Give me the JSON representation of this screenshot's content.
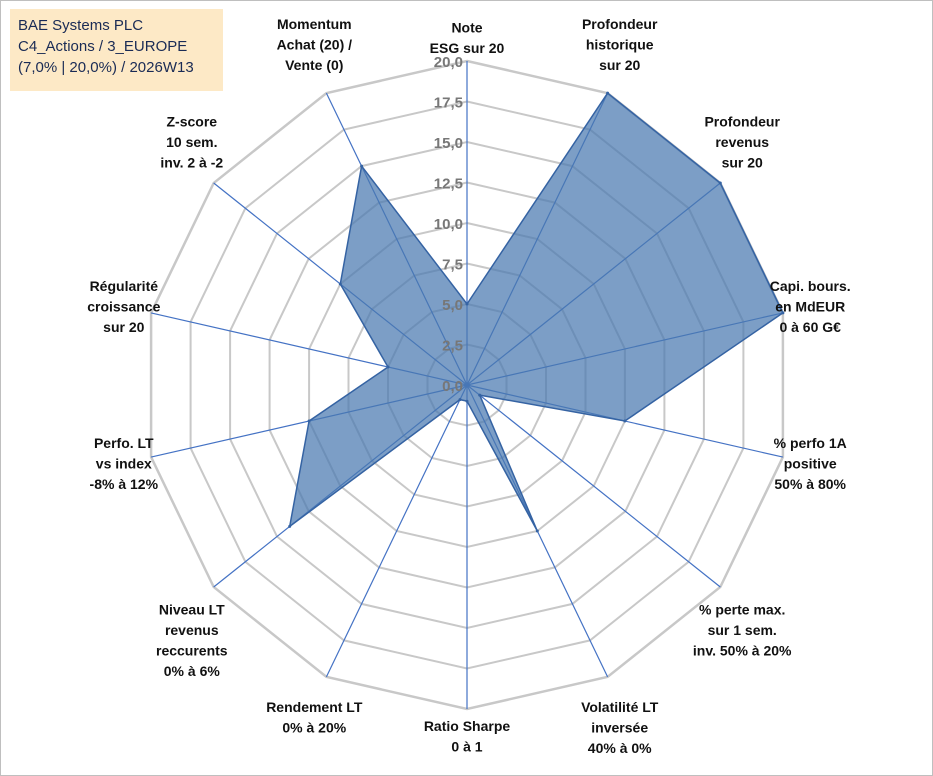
{
  "info": {
    "line1": "BAE Systems PLC",
    "line2": "C4_Actions / 3_EUROPE",
    "line3": "(7,0% | 20,0%) / 2026W13"
  },
  "colors": {
    "fill": "#4a78b0",
    "stroke": "#3563a3",
    "grid": "#c8c8c8",
    "spoke": "#4472c4"
  },
  "chart_data": {
    "type": "radar",
    "title": "BAE Systems PLC",
    "rmin": 0,
    "rmax": 20,
    "ticks": [
      "0,0",
      "2,5",
      "5,0",
      "7,5",
      "10,0",
      "12,5",
      "15,0",
      "17,5",
      "20,0"
    ],
    "axes": [
      {
        "lines": [
          "Note",
          "ESG sur 20"
        ],
        "value": 5
      },
      {
        "lines": [
          "Profondeur",
          "historique",
          "sur 20"
        ],
        "value": 20
      },
      {
        "lines": [
          "Profondeur",
          "revenus",
          "sur 20"
        ],
        "value": 20
      },
      {
        "lines": [
          "Capi. bours.",
          "en MdEUR",
          "0 à 60 G€"
        ],
        "value": 20
      },
      {
        "lines": [
          "% perfo 1A",
          "positive",
          "50% à 80%"
        ],
        "value": 10
      },
      {
        "lines": [
          "% perte max.",
          "sur 1 sem.",
          "inv. 50% à 20%"
        ],
        "value": 1
      },
      {
        "lines": [
          "Volatilité LT",
          "inversée",
          "40% à 0%"
        ],
        "value": 10
      },
      {
        "lines": [
          "Ratio Sharpe",
          "0 à 1"
        ],
        "value": 1
      },
      {
        "lines": [
          "Rendement LT",
          "0% à 20%"
        ],
        "value": 1
      },
      {
        "lines": [
          "Niveau LT",
          "revenus",
          "reccurents",
          "0% à 6%"
        ],
        "value": 14
      },
      {
        "lines": [
          "Perfo. LT",
          "vs index",
          "-8% à 12%"
        ],
        "value": 10
      },
      {
        "lines": [
          "Régularité",
          "croissance",
          "sur 20"
        ],
        "value": 5
      },
      {
        "lines": [
          "Z-score",
          "10 sem.",
          "inv. 2 à -2"
        ],
        "value": 10
      },
      {
        "lines": [
          "Momentum",
          "Achat (20) /",
          "Vente (0)"
        ],
        "value": 15
      }
    ]
  }
}
